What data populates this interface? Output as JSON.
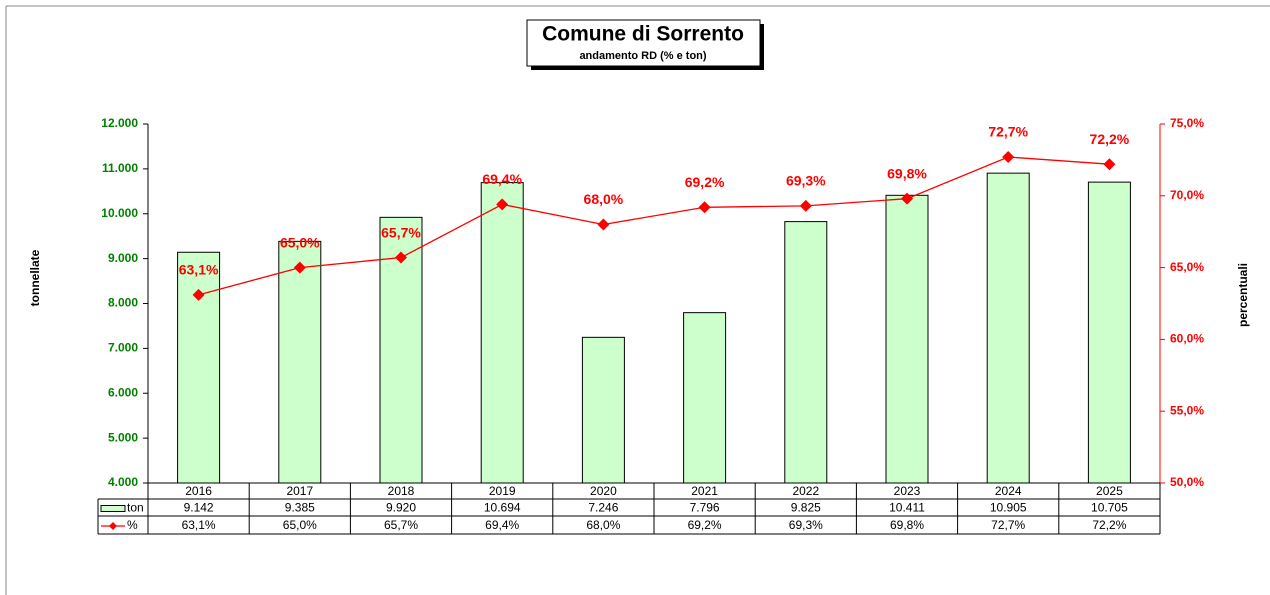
{
  "chart_data": {
    "type": "combo",
    "title": "Comune di Sorrento",
    "subtitle": "andamento RD (% e ton)",
    "ylabel": "tonnellate",
    "y2label": "percentuali",
    "categories": [
      "2016",
      "2017",
      "2018",
      "2019",
      "2020",
      "2021",
      "2022",
      "2023",
      "2024",
      "2025"
    ],
    "series": [
      {
        "name": "ton",
        "type": "bar",
        "color": "#ccffcc",
        "values": [
          9142,
          9385,
          9920,
          10694,
          7246,
          7796,
          9825,
          10411,
          10905,
          10705
        ],
        "value_labels": [
          "9.142",
          "9.385",
          "9.920",
          "10.694",
          "7.246",
          "7.796",
          "9.825",
          "10.411",
          "10.905",
          "10.705"
        ]
      },
      {
        "name": "%",
        "type": "line",
        "axis": "y2",
        "color": "#ff0000",
        "values": [
          63.1,
          65.0,
          65.7,
          69.4,
          68.0,
          69.2,
          69.3,
          69.8,
          72.7,
          72.2
        ],
        "value_labels": [
          "63,1%",
          "65,0%",
          "65,7%",
          "69,4%",
          "68,0%",
          "69,2%",
          "69,3%",
          "69,8%",
          "72,7%",
          "72,2%"
        ]
      }
    ],
    "ylim": [
      4000,
      12000
    ],
    "yticks": [
      {
        "value": 4000,
        "label": "4.000"
      },
      {
        "value": 5000,
        "label": "5.000"
      },
      {
        "value": 6000,
        "label": "6.000"
      },
      {
        "value": 7000,
        "label": "7.000"
      },
      {
        "value": 8000,
        "label": "8.000"
      },
      {
        "value": 9000,
        "label": "9.000"
      },
      {
        "value": 10000,
        "label": "10.000"
      },
      {
        "value": 11000,
        "label": "11.000"
      },
      {
        "value": 12000,
        "label": "12.000"
      }
    ],
    "y2lim": [
      50,
      75
    ],
    "y2ticks": [
      {
        "value": 50,
        "label": "50,0%"
      },
      {
        "value": 55,
        "label": "55,0%"
      },
      {
        "value": 60,
        "label": "60,0%"
      },
      {
        "value": 65,
        "label": "65,0%"
      },
      {
        "value": 70,
        "label": "70,0%"
      },
      {
        "value": 75,
        "label": "75,0%"
      }
    ],
    "data_table": true
  }
}
